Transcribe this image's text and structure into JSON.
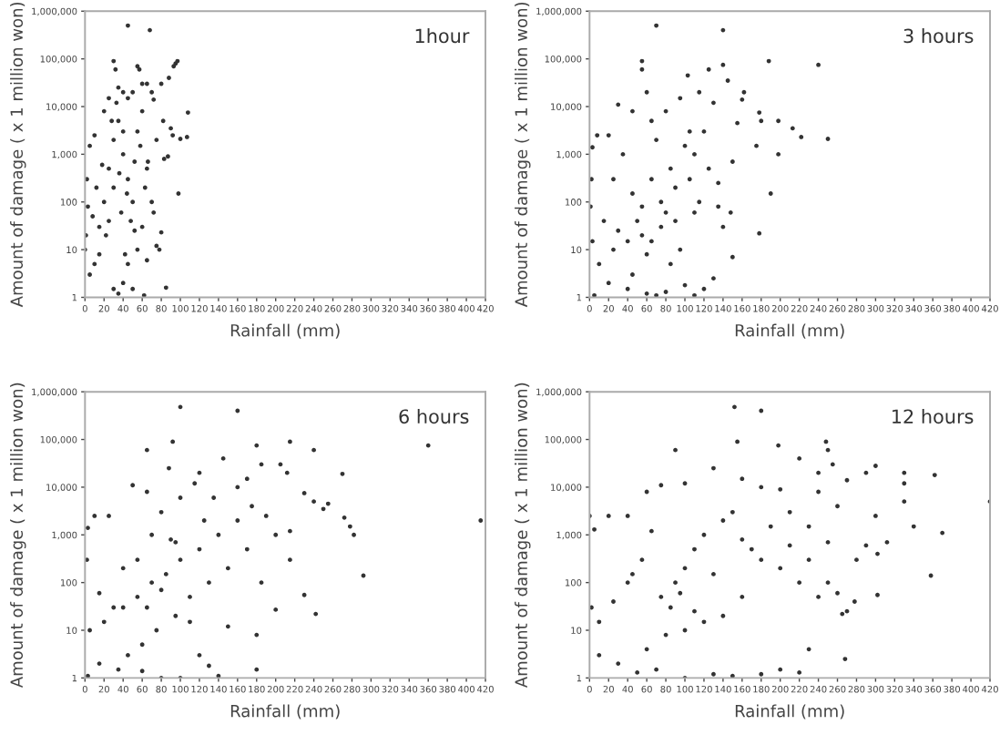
{
  "chart_data": [
    {
      "type": "scatter",
      "title": "1hour",
      "xlabel": "Rainfall (mm)",
      "ylabel": "Amount of damage ( x 1 million won)",
      "log": "y",
      "marker": "circle",
      "grid": false,
      "xlim": [
        0,
        420
      ],
      "ylim": [
        1,
        1000000
      ],
      "xticks": [
        0,
        20,
        40,
        60,
        80,
        100,
        120,
        140,
        160,
        180,
        200,
        220,
        240,
        260,
        280,
        300,
        320,
        340,
        360,
        380,
        400,
        420
      ],
      "yticks": [
        1,
        10,
        100,
        {
          "value": 1000,
          "label": "1,000"
        },
        {
          "value": 10000,
          "label": "10,000"
        },
        {
          "value": 100000,
          "label": "100,000"
        },
        {
          "value": 1000000,
          "label": "1,000,000"
        }
      ],
      "series": [
        {
          "color": "#333333",
          "x": [
            45,
            68,
            30,
            32,
            55,
            57,
            97,
            95,
            93,
            88,
            80,
            108,
            107,
            100,
            98,
            85,
            78,
            75,
            80,
            72,
            65,
            60,
            70,
            50,
            40,
            35,
            25,
            20,
            10,
            5,
            2,
            3,
            1,
            0,
            5,
            10,
            15,
            20,
            25,
            30,
            35,
            40,
            45,
            50,
            55,
            60,
            65,
            70,
            72,
            60,
            55,
            45,
            40,
            35,
            30,
            50,
            62,
            25,
            30,
            38,
            42,
            48,
            52,
            58,
            33,
            28,
            18,
            12,
            8,
            22,
            15,
            45,
            40,
            36,
            44,
            52,
            65,
            83,
            87,
            92,
            90,
            82,
            75,
            66,
            63
          ],
          "values": [
            500000,
            400000,
            90000,
            60000,
            70000,
            60000,
            90000,
            80000,
            70000,
            40000,
            30000,
            7500,
            2300,
            2100,
            150,
            1.6,
            10,
            12,
            23,
            14000,
            30000,
            30000,
            20000,
            20000,
            20000,
            25000,
            15000,
            8000,
            2500,
            1500,
            300,
            80,
            20,
            10,
            3,
            5,
            30,
            100,
            500,
            2000,
            5000,
            1000,
            300,
            100,
            3000,
            8000,
            500,
            100,
            60,
            30,
            10,
            5,
            2,
            1.2,
            1.5,
            1.5,
            1.1,
            40,
            200,
            60,
            8,
            40,
            700,
            1500,
            12000,
            5000,
            600,
            200,
            50,
            20,
            8,
            15000,
            3000,
            400,
            150,
            25,
            6,
            800,
            900,
            2500,
            3500,
            5000,
            2000,
            700,
            200
          ]
        }
      ]
    },
    {
      "type": "scatter",
      "title": "3 hours",
      "xlabel": "Rainfall (mm)",
      "ylabel": "Amount of damage ( x 1 million won)",
      "log": "y",
      "marker": "circle",
      "grid": false,
      "xlim": [
        0,
        420
      ],
      "ylim": [
        1,
        1000000
      ],
      "xticks": [
        0,
        20,
        40,
        60,
        80,
        100,
        120,
        140,
        160,
        180,
        200,
        220,
        240,
        260,
        280,
        300,
        320,
        340,
        360,
        380,
        400,
        420
      ],
      "yticks": [
        1,
        10,
        100,
        {
          "value": 1000,
          "label": "1,000"
        },
        {
          "value": 10000,
          "label": "10,000"
        },
        {
          "value": 100000,
          "label": "100,000"
        },
        {
          "value": 1000000,
          "label": "1,000,000"
        }
      ],
      "series": [
        {
          "color": "#333333",
          "x": [
            70,
            140,
            55,
            55,
            188,
            240,
            140,
            125,
            103,
            145,
            162,
            160,
            178,
            180,
            198,
            213,
            222,
            250,
            175,
            198,
            190,
            178,
            150,
            130,
            120,
            110,
            100,
            80,
            70,
            60,
            40,
            20,
            5,
            10,
            25,
            40,
            55,
            75,
            90,
            110,
            135,
            148,
            150,
            155,
            130,
            115,
            95,
            80,
            65,
            60,
            45,
            30,
            20,
            8,
            3,
            2,
            1,
            3,
            15,
            25,
            35,
            45,
            55,
            65,
            70,
            85,
            100,
            105,
            120,
            125,
            135,
            140,
            95,
            85,
            60,
            45,
            30,
            50,
            75,
            90,
            110,
            115,
            80,
            65,
            105
          ],
          "values": [
            500000,
            400000,
            90000,
            60000,
            90000,
            75000,
            75000,
            60000,
            45000,
            35000,
            20000,
            14000,
            7500,
            5000,
            5000,
            3500,
            2300,
            2100,
            1500,
            1000,
            150,
            22,
            7,
            2.5,
            1.5,
            1.1,
            1.8,
            1.3,
            1.1,
            1.2,
            1.5,
            2,
            1.1,
            5,
            10,
            15,
            20,
            30,
            40,
            60,
            80,
            60,
            700,
            4500,
            12000,
            20000,
            15000,
            8000,
            5000,
            20000,
            8000,
            11000,
            2500,
            2500,
            1400,
            300,
            80,
            15,
            40,
            300,
            1000,
            150,
            80,
            300,
            2000,
            500,
            1500,
            300,
            3000,
            500,
            250,
            30,
            10,
            5,
            8,
            3,
            25,
            40,
            100,
            200,
            1000,
            100,
            60,
            15,
            3000
          ]
        }
      ]
    },
    {
      "type": "scatter",
      "title": "6 hours",
      "xlabel": "Rainfall (mm)",
      "ylabel": "Amount of damage ( x 1 million won)",
      "log": "y",
      "marker": "circle",
      "grid": false,
      "xlim": [
        0,
        420
      ],
      "ylim": [
        1,
        1000000
      ],
      "xticks": [
        0,
        20,
        40,
        60,
        80,
        100,
        120,
        140,
        160,
        180,
        200,
        220,
        240,
        260,
        280,
        300,
        320,
        340,
        360,
        380,
        400,
        420
      ],
      "yticks": [
        1,
        10,
        100,
        {
          "value": 1000,
          "label": "1,000"
        },
        {
          "value": 10000,
          "label": "10,000"
        },
        {
          "value": 100000,
          "label": "100,000"
        },
        {
          "value": 1000000,
          "label": "1,000,000"
        }
      ],
      "series": [
        {
          "color": "#333333",
          "x": [
            100,
            160,
            92,
            65,
            180,
            215,
            240,
            360,
            270,
            212,
            205,
            185,
            145,
            88,
            120,
            230,
            240,
            255,
            250,
            272,
            278,
            282,
            415,
            292,
            215,
            215,
            230,
            242,
            200,
            185,
            180,
            180,
            140,
            130,
            100,
            80,
            60,
            35,
            15,
            3,
            5,
            20,
            40,
            55,
            70,
            85,
            100,
            120,
            140,
            160,
            175,
            190,
            200,
            170,
            150,
            130,
            110,
            95,
            75,
            60,
            45,
            30,
            15,
            2,
            3,
            10,
            25,
            50,
            65,
            80,
            100,
            115,
            135,
            160,
            170,
            125,
            90,
            70,
            55,
            40,
            80,
            65,
            110,
            150,
            120,
            95
          ],
          "values": [
            480000,
            400000,
            90000,
            60000,
            75000,
            90000,
            60000,
            75000,
            19000,
            20000,
            30000,
            30000,
            40000,
            25000,
            20000,
            7500,
            5000,
            4500,
            3500,
            2300,
            1500,
            1000,
            2000,
            140,
            1200,
            300,
            55,
            22,
            27,
            100,
            8,
            1.5,
            1.1,
            1.8,
            1,
            1,
            1.4,
            1.5,
            2,
            1.1,
            10,
            15,
            30,
            50,
            100,
            150,
            300,
            500,
            1000,
            2000,
            4000,
            2500,
            1000,
            500,
            200,
            100,
            50,
            20,
            10,
            5,
            3,
            30,
            60,
            300,
            1400,
            2500,
            2500,
            11000,
            8000,
            3000,
            6000,
            12000,
            6000,
            10000,
            15000,
            2000,
            800,
            1000,
            300,
            200,
            70,
            30,
            15,
            12,
            3,
            700
          ]
        }
      ]
    },
    {
      "type": "scatter",
      "title": "12 hours",
      "xlabel": "Rainfall (mm)",
      "ylabel": "Amount of damage ( x 1 million won)",
      "log": "y",
      "marker": "circle",
      "grid": false,
      "xlim": [
        0,
        420
      ],
      "ylim": [
        1,
        1000000
      ],
      "xticks": [
        0,
        20,
        40,
        60,
        80,
        100,
        120,
        140,
        160,
        180,
        200,
        220,
        240,
        260,
        280,
        300,
        320,
        340,
        360,
        380,
        400,
        420
      ],
      "yticks": [
        1,
        10,
        100,
        {
          "value": 1000,
          "label": "1,000"
        },
        {
          "value": 10000,
          "label": "10,000"
        },
        {
          "value": 100000,
          "label": "100,000"
        },
        {
          "value": 1000000,
          "label": "1,000,000"
        }
      ],
      "series": [
        {
          "color": "#333333",
          "x": [
            152,
            180,
            155,
            90,
            198,
            248,
            250,
            300,
            330,
            362,
            330,
            290,
            270,
            220,
            240,
            255,
            420,
            330,
            300,
            340,
            370,
            312,
            290,
            302,
            280,
            358,
            302,
            278,
            270,
            265,
            268,
            260,
            250,
            230,
            220,
            200,
            180,
            150,
            130,
            100,
            70,
            50,
            30,
            10,
            2,
            0,
            5,
            20,
            40,
            60,
            75,
            100,
            130,
            160,
            180,
            200,
            210,
            230,
            250,
            260,
            240,
            10,
            25,
            40,
            55,
            75,
            90,
            100,
            110,
            120,
            140,
            160,
            180,
            200,
            220,
            240,
            160,
            140,
            120,
            100,
            80,
            60,
            85,
            95,
            110,
            130,
            150,
            170,
            190,
            210,
            230,
            65,
            45
          ],
          "values": [
            480000,
            400000,
            90000,
            60000,
            75000,
            90000,
            60000,
            28000,
            20000,
            18000,
            12000,
            20000,
            14000,
            40000,
            20000,
            30000,
            5000,
            5000,
            2500,
            1500,
            1100,
            700,
            600,
            400,
            300,
            140,
            55,
            40,
            25,
            22,
            2.5,
            60,
            100,
            4,
            1.3,
            1.5,
            1.2,
            1.1,
            1.2,
            1,
            1.5,
            1.3,
            2,
            3,
            30,
            2500,
            1300,
            2500,
            2500,
            8000,
            11000,
            12000,
            25000,
            15000,
            10000,
            9000,
            3000,
            1500,
            700,
            4000,
            8000,
            15,
            40,
            100,
            300,
            50,
            100,
            200,
            500,
            1000,
            2000,
            800,
            300,
            200,
            100,
            50,
            50,
            20,
            15,
            10,
            8,
            4,
            30,
            60,
            25,
            150,
            3000,
            500,
            1500,
            600,
            300,
            1200,
            150
          ]
        }
      ]
    }
  ]
}
